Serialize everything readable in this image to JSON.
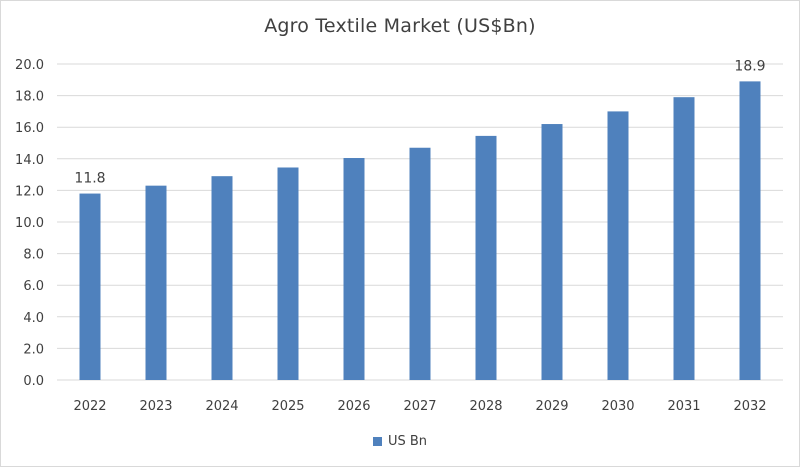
{
  "chart_data": {
    "type": "bar",
    "title": "Agro Textile Market (US$Bn)",
    "categories": [
      "2022",
      "2023",
      "2024",
      "2025",
      "2026",
      "2027",
      "2028",
      "2029",
      "2030",
      "2031",
      "2032"
    ],
    "series": [
      {
        "name": "US Bn",
        "color": "#4f81bd",
        "values": [
          11.8,
          12.3,
          12.9,
          13.45,
          14.05,
          14.7,
          15.45,
          16.2,
          17.0,
          17.9,
          18.9
        ]
      }
    ],
    "data_labels": [
      {
        "category": "2022",
        "text": "11.8"
      },
      {
        "category": "2032",
        "text": "18.9"
      }
    ],
    "y_ticks": [
      "0.0",
      "2.0",
      "4.0",
      "6.0",
      "8.0",
      "10.0",
      "12.0",
      "14.0",
      "16.0",
      "18.0",
      "20.0"
    ],
    "ylim": [
      0,
      20
    ],
    "xlabel": "",
    "ylabel": "",
    "grid": true,
    "legend_position": "bottom"
  }
}
